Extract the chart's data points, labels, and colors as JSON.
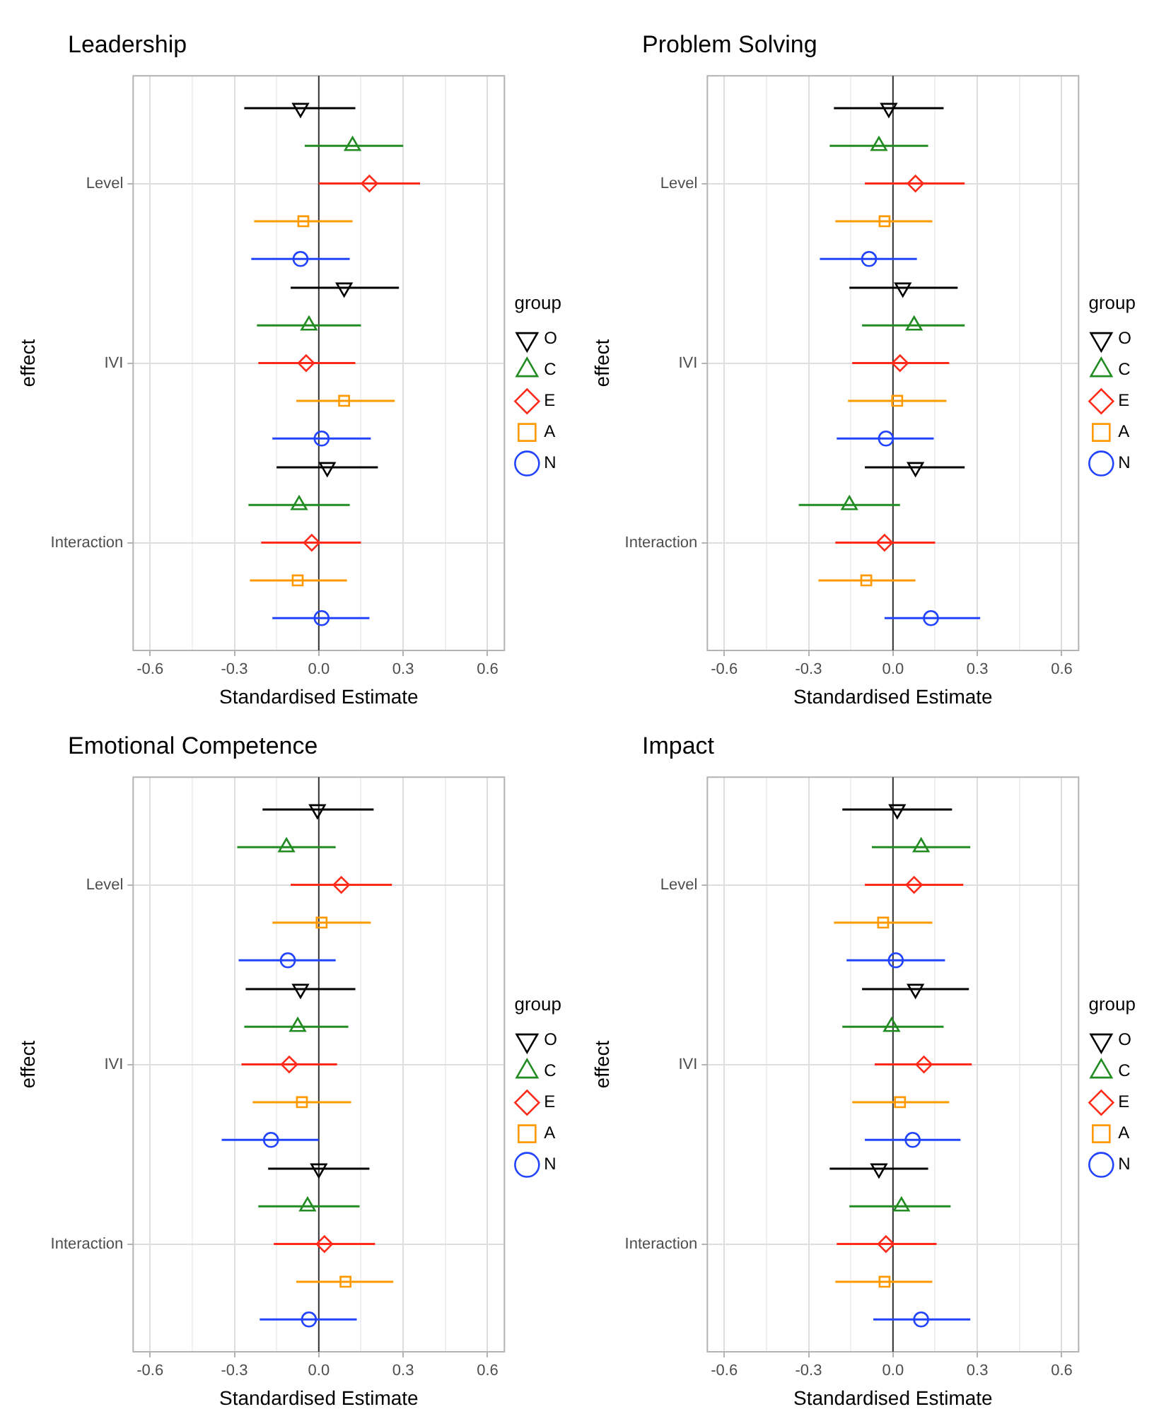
{
  "chart_data": [
    {
      "type": "scatter",
      "title": "Leadership",
      "xlabel": "Standardised Estimate",
      "ylabel": "effect",
      "orientation": "horizontal",
      "categories": [
        "Level",
        "IVI",
        "Interaction"
      ],
      "xlim": [
        -0.66,
        0.66
      ],
      "xticks": [
        {
          "value": -0.6,
          "label": "-0.6"
        },
        {
          "value": -0.45,
          "label": null
        },
        {
          "value": -0.3,
          "label": "-0.3"
        },
        {
          "value": -0.15,
          "label": null
        },
        {
          "value": 0,
          "label": "0.0"
        },
        {
          "value": 0.15,
          "label": null
        },
        {
          "value": 0.3,
          "label": "0.3"
        },
        {
          "value": 0.45,
          "label": null
        },
        {
          "value": 0.6,
          "label": "0.6"
        }
      ],
      "grid": true,
      "legend": "right",
      "legend_title": "group",
      "ref_lines": [
        {
          "axis": "x",
          "value": 0,
          "color": "#333333"
        }
      ],
      "series": [
        {
          "name": "O",
          "color": "#000000",
          "marker": "triangle-down",
          "values": [
            -0.065,
            0.09,
            0.03
          ],
          "errors": [
            [
              -0.265,
              0.13
            ],
            [
              -0.1,
              0.285
            ],
            [
              -0.15,
              0.21
            ]
          ]
        },
        {
          "name": "C",
          "color": "#228b22",
          "marker": "triangle",
          "values": [
            0.12,
            -0.035,
            -0.07
          ],
          "errors": [
            [
              -0.05,
              0.3
            ],
            [
              -0.22,
              0.15
            ],
            [
              -0.25,
              0.11
            ]
          ]
        },
        {
          "name": "E",
          "color": "#ff2a1a",
          "marker": "diamond",
          "values": [
            0.18,
            -0.045,
            -0.025
          ],
          "errors": [
            [
              0.0,
              0.36
            ],
            [
              -0.215,
              0.13
            ],
            [
              -0.205,
              0.15
            ]
          ]
        },
        {
          "name": "A",
          "color": "#ff9900",
          "marker": "square",
          "values": [
            -0.055,
            0.09,
            -0.075
          ],
          "errors": [
            [
              -0.23,
              0.12
            ],
            [
              -0.08,
              0.27
            ],
            [
              -0.245,
              0.1
            ]
          ]
        },
        {
          "name": "N",
          "color": "#2244ff",
          "marker": "circle",
          "values": [
            -0.065,
            0.01,
            0.01
          ],
          "errors": [
            [
              -0.24,
              0.11
            ],
            [
              -0.165,
              0.185
            ],
            [
              -0.165,
              0.18
            ]
          ]
        }
      ]
    },
    {
      "type": "scatter",
      "title": "Problem Solving",
      "xlabel": "Standardised Estimate",
      "ylabel": "effect",
      "orientation": "horizontal",
      "categories": [
        "Level",
        "IVI",
        "Interaction"
      ],
      "xlim": [
        -0.66,
        0.66
      ],
      "xticks": [
        {
          "value": -0.6,
          "label": "-0.6"
        },
        {
          "value": -0.45,
          "label": null
        },
        {
          "value": -0.3,
          "label": "-0.3"
        },
        {
          "value": -0.15,
          "label": null
        },
        {
          "value": 0,
          "label": "0.0"
        },
        {
          "value": 0.15,
          "label": null
        },
        {
          "value": 0.3,
          "label": "0.3"
        },
        {
          "value": 0.45,
          "label": null
        },
        {
          "value": 0.6,
          "label": "0.6"
        }
      ],
      "grid": true,
      "legend": "right",
      "legend_title": "group",
      "ref_lines": [
        {
          "axis": "x",
          "value": 0,
          "color": "#333333"
        }
      ],
      "series": [
        {
          "name": "O",
          "color": "#000000",
          "marker": "triangle-down",
          "values": [
            -0.015,
            0.035,
            0.08
          ],
          "errors": [
            [
              -0.21,
              0.18
            ],
            [
              -0.155,
              0.23
            ],
            [
              -0.1,
              0.255
            ]
          ]
        },
        {
          "name": "C",
          "color": "#228b22",
          "marker": "triangle",
          "values": [
            -0.05,
            0.075,
            -0.155
          ],
          "errors": [
            [
              -0.225,
              0.125
            ],
            [
              -0.11,
              0.255
            ],
            [
              -0.335,
              0.025
            ]
          ]
        },
        {
          "name": "E",
          "color": "#ff2a1a",
          "marker": "diamond",
          "values": [
            0.08,
            0.025,
            -0.03
          ],
          "errors": [
            [
              -0.1,
              0.255
            ],
            [
              -0.145,
              0.2
            ],
            [
              -0.205,
              0.15
            ]
          ]
        },
        {
          "name": "A",
          "color": "#ff9900",
          "marker": "square",
          "values": [
            -0.03,
            0.015,
            -0.095
          ],
          "errors": [
            [
              -0.205,
              0.14
            ],
            [
              -0.16,
              0.19
            ],
            [
              -0.265,
              0.08
            ]
          ]
        },
        {
          "name": "N",
          "color": "#2244ff",
          "marker": "circle",
          "values": [
            -0.085,
            -0.025,
            0.135
          ],
          "errors": [
            [
              -0.26,
              0.085
            ],
            [
              -0.2,
              0.145
            ],
            [
              -0.03,
              0.31
            ]
          ]
        }
      ]
    },
    {
      "type": "scatter",
      "title": "Emotional Competence",
      "xlabel": "Standardised Estimate",
      "ylabel": "effect",
      "orientation": "horizontal",
      "categories": [
        "Level",
        "IVI",
        "Interaction"
      ],
      "xlim": [
        -0.66,
        0.66
      ],
      "xticks": [
        {
          "value": -0.6,
          "label": "-0.6"
        },
        {
          "value": -0.45,
          "label": null
        },
        {
          "value": -0.3,
          "label": "-0.3"
        },
        {
          "value": -0.15,
          "label": null
        },
        {
          "value": 0,
          "label": "0.0"
        },
        {
          "value": 0.15,
          "label": null
        },
        {
          "value": 0.3,
          "label": "0.3"
        },
        {
          "value": 0.45,
          "label": null
        },
        {
          "value": 0.6,
          "label": "0.6"
        }
      ],
      "grid": true,
      "legend": "right",
      "legend_title": "group",
      "ref_lines": [
        {
          "axis": "x",
          "value": 0,
          "color": "#333333"
        }
      ],
      "series": [
        {
          "name": "O",
          "color": "#000000",
          "marker": "triangle-down",
          "values": [
            -0.005,
            -0.065,
            0.0
          ],
          "errors": [
            [
              -0.2,
              0.195
            ],
            [
              -0.26,
              0.13
            ],
            [
              -0.18,
              0.18
            ]
          ]
        },
        {
          "name": "C",
          "color": "#228b22",
          "marker": "triangle",
          "values": [
            -0.115,
            -0.075,
            -0.04
          ],
          "errors": [
            [
              -0.29,
              0.06
            ],
            [
              -0.265,
              0.105
            ],
            [
              -0.215,
              0.145
            ]
          ]
        },
        {
          "name": "E",
          "color": "#ff2a1a",
          "marker": "diamond",
          "values": [
            0.08,
            -0.105,
            0.02
          ],
          "errors": [
            [
              -0.1,
              0.26
            ],
            [
              -0.275,
              0.065
            ],
            [
              -0.16,
              0.2
            ]
          ]
        },
        {
          "name": "A",
          "color": "#ff9900",
          "marker": "square",
          "values": [
            0.01,
            -0.06,
            0.095
          ],
          "errors": [
            [
              -0.165,
              0.185
            ],
            [
              -0.235,
              0.115
            ],
            [
              -0.08,
              0.265
            ]
          ]
        },
        {
          "name": "N",
          "color": "#2244ff",
          "marker": "circle",
          "values": [
            -0.11,
            -0.17,
            -0.035
          ],
          "errors": [
            [
              -0.285,
              0.06
            ],
            [
              -0.345,
              0.0
            ],
            [
              -0.21,
              0.135
            ]
          ]
        }
      ]
    },
    {
      "type": "scatter",
      "title": "Impact",
      "xlabel": "Standardised Estimate",
      "ylabel": "effect",
      "orientation": "horizontal",
      "categories": [
        "Level",
        "IVI",
        "Interaction"
      ],
      "xlim": [
        -0.66,
        0.66
      ],
      "xticks": [
        {
          "value": -0.6,
          "label": "-0.6"
        },
        {
          "value": -0.45,
          "label": null
        },
        {
          "value": -0.3,
          "label": "-0.3"
        },
        {
          "value": -0.15,
          "label": null
        },
        {
          "value": 0,
          "label": "0.0"
        },
        {
          "value": 0.15,
          "label": null
        },
        {
          "value": 0.3,
          "label": "0.3"
        },
        {
          "value": 0.45,
          "label": null
        },
        {
          "value": 0.6,
          "label": "0.6"
        }
      ],
      "grid": true,
      "legend": "right",
      "legend_title": "group",
      "ref_lines": [
        {
          "axis": "x",
          "value": 0,
          "color": "#333333"
        }
      ],
      "series": [
        {
          "name": "O",
          "color": "#000000",
          "marker": "triangle-down",
          "values": [
            0.015,
            0.08,
            -0.05
          ],
          "errors": [
            [
              -0.18,
              0.21
            ],
            [
              -0.11,
              0.27
            ],
            [
              -0.225,
              0.125
            ]
          ]
        },
        {
          "name": "C",
          "color": "#228b22",
          "marker": "triangle",
          "values": [
            0.1,
            -0.005,
            0.03
          ],
          "errors": [
            [
              -0.075,
              0.275
            ],
            [
              -0.18,
              0.18
            ],
            [
              -0.155,
              0.205
            ]
          ]
        },
        {
          "name": "E",
          "color": "#ff2a1a",
          "marker": "diamond",
          "values": [
            0.075,
            0.11,
            -0.025
          ],
          "errors": [
            [
              -0.1,
              0.25
            ],
            [
              -0.065,
              0.28
            ],
            [
              -0.2,
              0.155
            ]
          ]
        },
        {
          "name": "A",
          "color": "#ff9900",
          "marker": "square",
          "values": [
            -0.035,
            0.025,
            -0.03
          ],
          "errors": [
            [
              -0.21,
              0.14
            ],
            [
              -0.145,
              0.2
            ],
            [
              -0.205,
              0.14
            ]
          ]
        },
        {
          "name": "N",
          "color": "#2244ff",
          "marker": "circle",
          "values": [
            0.01,
            0.07,
            0.1
          ],
          "errors": [
            [
              -0.165,
              0.185
            ],
            [
              -0.1,
              0.24
            ],
            [
              -0.07,
              0.275
            ]
          ]
        }
      ]
    }
  ]
}
